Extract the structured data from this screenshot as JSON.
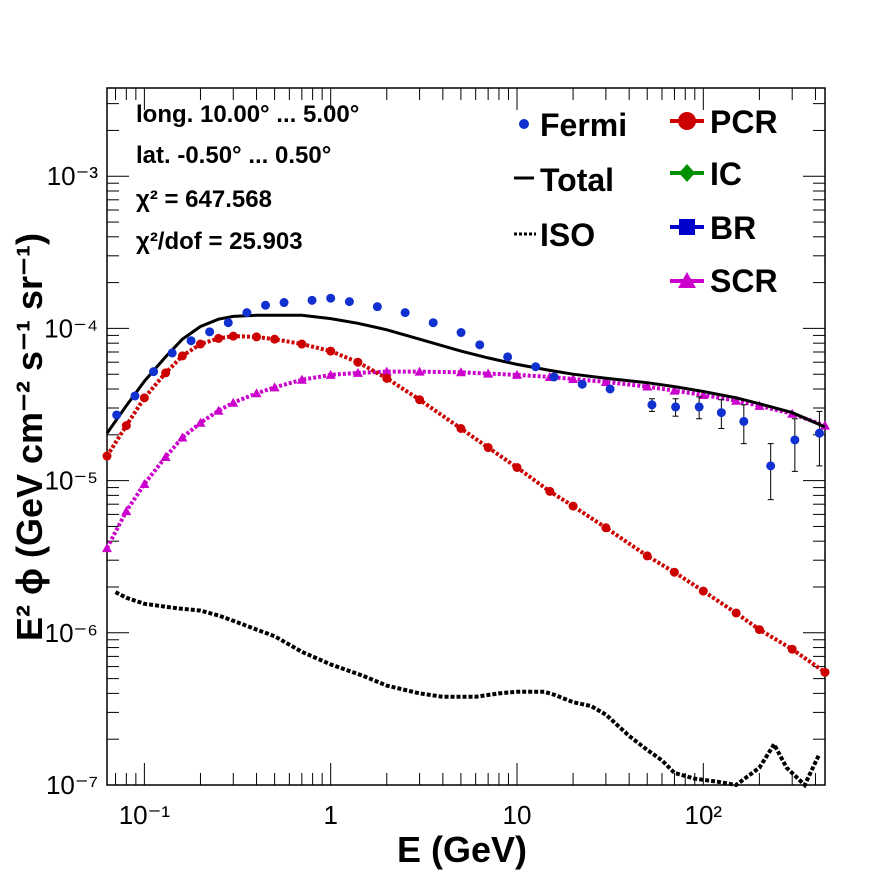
{
  "chart_data": {
    "type": "scatter",
    "xscale": "log",
    "yscale": "log",
    "xlim": [
      0.063,
      450
    ],
    "ylim": [
      1e-07,
      0.0038
    ],
    "xlabel": "E (GeV)",
    "ylabel": "E² ϕ (GeV cm⁻² s⁻¹ sr⁻¹)",
    "x_tick_labels": [
      "10⁻¹",
      "1",
      "10",
      "10²"
    ],
    "y_tick_labels": [
      "10⁻⁷",
      "10⁻⁶",
      "10⁻⁵",
      "10⁻⁴",
      "10⁻³"
    ],
    "info": {
      "line1": "long. 10.00° ... 5.00°",
      "line2": "lat. -0.50° ... 0.50°",
      "line3": "χ² = 647.568",
      "line4": "χ²/dof = 25.903"
    },
    "legend_placement": "top-right",
    "series": [
      {
        "name": "Fermi",
        "color": "#1030d0",
        "style": "points-with-error-bars",
        "x": [
          0.071,
          0.089,
          0.112,
          0.141,
          0.178,
          0.224,
          0.282,
          0.355,
          0.447,
          0.562,
          0.794,
          1.0,
          1.26,
          1.78,
          2.51,
          3.55,
          5.01,
          6.31,
          8.91,
          12.6,
          15.8,
          22.4,
          31.6,
          53,
          71,
          95,
          125,
          165,
          230,
          310,
          420
        ],
        "y": [
          2.7e-05,
          3.6e-05,
          5.2e-05,
          6.9e-05,
          8.3e-05,
          9.5e-05,
          0.000109,
          0.000127,
          0.000142,
          0.000148,
          0.000153,
          0.000158,
          0.00015,
          0.000139,
          0.000127,
          0.000109,
          9.4e-05,
          7.8e-05,
          6.5e-05,
          5.6e-05,
          4.8e-05,
          4.3e-05,
          4e-05,
          3.15e-05,
          3.05e-05,
          3.05e-05,
          2.8e-05,
          2.45e-05,
          1.25e-05,
          1.85e-05,
          2.05e-05
        ],
        "err": [
          0,
          0,
          0,
          0,
          0,
          0,
          0,
          0,
          0,
          0,
          0,
          0,
          0,
          0,
          0,
          0,
          0,
          0,
          0,
          0,
          0,
          0,
          0,
          3e-06,
          4e-06,
          5e-06,
          6e-06,
          7e-06,
          5e-06,
          7e-06,
          8e-06
        ]
      },
      {
        "name": "Total",
        "color": "#000000",
        "style": "solid",
        "x": [
          0.063,
          0.08,
          0.1,
          0.13,
          0.16,
          0.2,
          0.25,
          0.3,
          0.4,
          0.5,
          0.7,
          1.0,
          1.4,
          2.0,
          3.0,
          5.0,
          7.0,
          10,
          15,
          20,
          30,
          50,
          70,
          100,
          150,
          200,
          300,
          450
        ],
        "y": [
          2.05e-05,
          3.1e-05,
          4.5e-05,
          6.5e-05,
          8.5e-05,
          0.000103,
          0.000115,
          0.00012,
          0.000122,
          0.000122,
          0.000122,
          0.000116,
          0.000108,
          9.8e-05,
          8.5e-05,
          7.1e-05,
          6.4e-05,
          5.8e-05,
          5.3e-05,
          5e-05,
          4.7e-05,
          4.4e-05,
          4.15e-05,
          3.85e-05,
          3.5e-05,
          3.2e-05,
          2.8e-05,
          2.25e-05
        ]
      },
      {
        "name": "ISO",
        "color": "#000000",
        "style": "dotted",
        "x": [
          0.07,
          0.08,
          0.1,
          0.15,
          0.2,
          0.25,
          0.3,
          0.4,
          0.5,
          0.7,
          1.0,
          1.5,
          2.0,
          3.0,
          4.0,
          6.0,
          8.0,
          10,
          14,
          16,
          20,
          25,
          30,
          40,
          50,
          60,
          70,
          90,
          120,
          150,
          200,
          240,
          280,
          350,
          420
        ],
        "y": [
          1.85e-06,
          1.7e-06,
          1.55e-06,
          1.45e-06,
          1.4e-06,
          1.3e-06,
          1.2e-06,
          1.05e-06,
          9.5e-07,
          7.5e-07,
          6.2e-07,
          5.2e-07,
          4.5e-07,
          4e-07,
          3.8e-07,
          3.8e-07,
          4e-07,
          4.1e-07,
          4.1e-07,
          3.9e-07,
          3.5e-07,
          3.3e-07,
          2.9e-07,
          2.1e-07,
          1.7e-07,
          1.45e-07,
          1.2e-07,
          1.1e-07,
          1.05e-07,
          8e-08,
          1.3e-07,
          1.85e-07,
          1.3e-07,
          8e-08,
          1.6e-07
        ]
      },
      {
        "name": "PCR",
        "color": "#cc0000",
        "style": "line-markers",
        "x": [
          0.063,
          0.08,
          0.1,
          0.13,
          0.16,
          0.2,
          0.25,
          0.3,
          0.4,
          0.5,
          0.7,
          1.0,
          1.4,
          2.0,
          3.0,
          5.0,
          7.0,
          10,
          15,
          20,
          30,
          50,
          70,
          100,
          150,
          200,
          300,
          450
        ],
        "y": [
          1.45e-05,
          2.3e-05,
          3.5e-05,
          5.1e-05,
          6.6e-05,
          7.9e-05,
          8.6e-05,
          8.9e-05,
          8.8e-05,
          8.5e-05,
          7.9e-05,
          7.1e-05,
          6e-05,
          4.7e-05,
          3.4e-05,
          2.2e-05,
          1.65e-05,
          1.22e-05,
          8.5e-06,
          6.8e-06,
          4.9e-06,
          3.2e-06,
          2.5e-06,
          1.88e-06,
          1.35e-06,
          1.05e-06,
          7.8e-07,
          5.5e-07
        ]
      },
      {
        "name": "IC",
        "color": "#009000",
        "style": "line-markers",
        "x": [],
        "y": []
      },
      {
        "name": "BR",
        "color": "#0000cc",
        "style": "line-markers",
        "x": [],
        "y": []
      },
      {
        "name": "SCR",
        "color": "#cc00cc",
        "style": "line-markers",
        "x": [
          0.063,
          0.08,
          0.1,
          0.13,
          0.16,
          0.2,
          0.25,
          0.3,
          0.4,
          0.5,
          0.7,
          1.0,
          1.4,
          2.0,
          3.0,
          5.0,
          7.0,
          10,
          15,
          20,
          30,
          50,
          70,
          100,
          150,
          200,
          300,
          450
        ],
        "y": [
          3.6e-06,
          6.3e-06,
          9.5e-06,
          1.43e-05,
          1.92e-05,
          2.4e-05,
          2.88e-05,
          3.25e-05,
          3.75e-05,
          4.1e-05,
          4.6e-05,
          4.95e-05,
          5.1e-05,
          5.2e-05,
          5.2e-05,
          5.15e-05,
          5.05e-05,
          4.95e-05,
          4.8e-05,
          4.65e-05,
          4.45e-05,
          4.15e-05,
          3.9e-05,
          3.65e-05,
          3.35e-05,
          3.1e-05,
          2.75e-05,
          2.3e-05
        ]
      }
    ]
  }
}
